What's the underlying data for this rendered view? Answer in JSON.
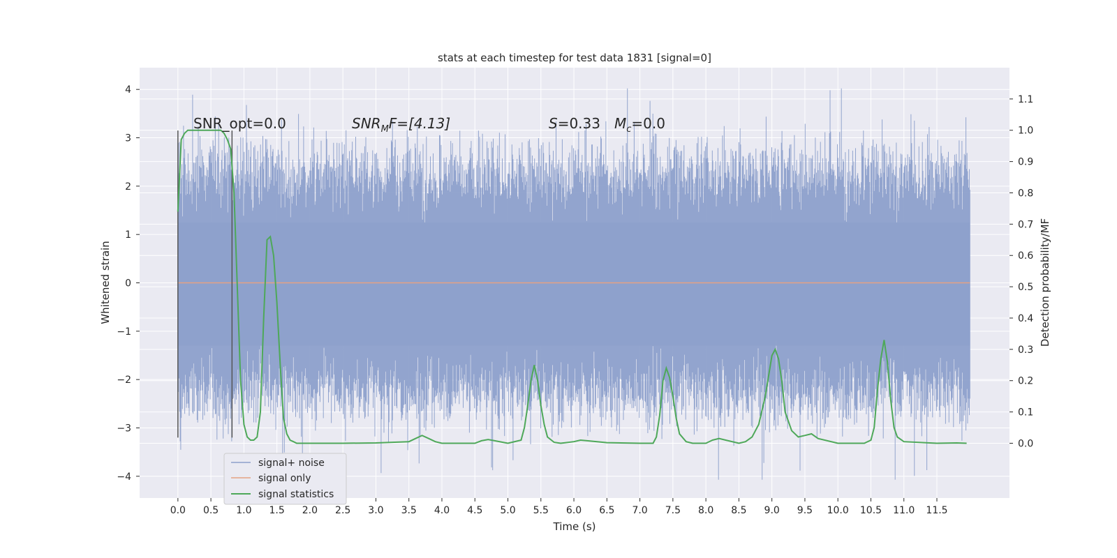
{
  "chart_data": {
    "type": "line",
    "title": "stats at each timestep for test data 1831 [signal=0]",
    "xlabel": "Time (s)",
    "ylabel": "Whitened strain",
    "y2label": "Detection probability/MF",
    "xlim": [
      -0.58,
      12.6
    ],
    "ylim": [
      -4.45,
      4.45
    ],
    "y2lim": [
      -0.175,
      1.2
    ],
    "x_ticks": [
      "0.0",
      "0.5",
      "1.0",
      "1.5",
      "2.0",
      "2.5",
      "3.0",
      "3.5",
      "4.0",
      "4.5",
      "5.0",
      "5.5",
      "6.0",
      "6.5",
      "7.0",
      "7.5",
      "8.0",
      "8.5",
      "9.0",
      "9.5",
      "10.0",
      "10.5",
      "11.0",
      "11.5"
    ],
    "y_ticks": [
      "4",
      "3",
      "2",
      "1",
      "0",
      "−1",
      "−2",
      "−3",
      "−4"
    ],
    "y2_ticks": [
      "1.1",
      "1.0",
      "0.9",
      "0.8",
      "0.7",
      "0.6",
      "0.5",
      "0.4",
      "0.3",
      "0.2",
      "0.1",
      "0.0"
    ],
    "grid": true,
    "legend_position": "lower-left",
    "annotations": {
      "snr_opt": "SNR_opt=0.0",
      "snr_mf_main": "SNR",
      "snr_mf_sub": "M",
      "snr_mf_rest": "F=[4.13]",
      "s_label": "S",
      "s_value": "=0.33",
      "mc_main": "M",
      "mc_sub": "c",
      "mc_value": "=0.0"
    },
    "series": [
      {
        "name": "signal+ noise",
        "color": "#8da0cb",
        "description_kind": "whitened strain noise, dense, spanning roughly -4.1 to 4.0",
        "envelope": {
          "t_start": 0.0,
          "t_end": 12.0,
          "typical_upper": 2.3,
          "typical_lower": -2.3,
          "max": 4.02,
          "min": -4.07
        }
      },
      {
        "name": "signal only",
        "color": "#e5a183",
        "values_constant": 0.0
      },
      {
        "name": "signal statistics",
        "color": "#4ea859",
        "axis": "right",
        "x": [
          0.0,
          0.05,
          0.1,
          0.15,
          0.2,
          0.3,
          0.4,
          0.5,
          0.6,
          0.65,
          0.7,
          0.75,
          0.8,
          0.85,
          0.9,
          0.95,
          1.0,
          1.05,
          1.1,
          1.15,
          1.2,
          1.25,
          1.3,
          1.35,
          1.4,
          1.45,
          1.5,
          1.55,
          1.6,
          1.65,
          1.7,
          1.75,
          1.8,
          1.9,
          2.0,
          2.5,
          3.0,
          3.5,
          3.6,
          3.7,
          3.8,
          3.9,
          4.0,
          4.5,
          4.6,
          4.7,
          4.8,
          5.0,
          5.2,
          5.25,
          5.3,
          5.35,
          5.4,
          5.45,
          5.5,
          5.55,
          5.6,
          5.7,
          5.8,
          6.0,
          6.1,
          6.2,
          6.5,
          7.0,
          7.2,
          7.25,
          7.3,
          7.35,
          7.4,
          7.45,
          7.5,
          7.55,
          7.6,
          7.7,
          7.8,
          8.0,
          8.1,
          8.2,
          8.3,
          8.5,
          8.6,
          8.7,
          8.8,
          8.9,
          9.0,
          9.05,
          9.1,
          9.15,
          9.2,
          9.3,
          9.4,
          9.5,
          9.6,
          9.7,
          10.0,
          10.4,
          10.5,
          10.55,
          10.6,
          10.65,
          10.7,
          10.75,
          10.8,
          10.85,
          10.9,
          11.0,
          11.5,
          11.8,
          11.95
        ],
        "values": [
          0.74,
          0.97,
          0.99,
          1.0,
          1.0,
          1.0,
          1.0,
          1.0,
          1.0,
          1.0,
          0.99,
          0.97,
          0.94,
          0.8,
          0.5,
          0.2,
          0.06,
          0.02,
          0.01,
          0.01,
          0.02,
          0.1,
          0.4,
          0.65,
          0.66,
          0.6,
          0.45,
          0.25,
          0.08,
          0.03,
          0.01,
          0.005,
          0.0,
          0.0,
          0.0,
          0.0,
          0.001,
          0.005,
          0.015,
          0.025,
          0.015,
          0.005,
          0.0,
          0.0,
          0.008,
          0.012,
          0.008,
          0.0,
          0.01,
          0.05,
          0.12,
          0.2,
          0.25,
          0.2,
          0.12,
          0.06,
          0.02,
          0.003,
          0.0,
          0.005,
          0.01,
          0.008,
          0.002,
          0.0,
          0.0,
          0.02,
          0.09,
          0.2,
          0.24,
          0.21,
          0.15,
          0.08,
          0.03,
          0.005,
          0.0,
          0.0,
          0.01,
          0.015,
          0.01,
          0.0,
          0.005,
          0.02,
          0.06,
          0.15,
          0.28,
          0.3,
          0.27,
          0.2,
          0.1,
          0.04,
          0.02,
          0.025,
          0.03,
          0.015,
          0.0,
          0.0,
          0.01,
          0.05,
          0.17,
          0.27,
          0.33,
          0.26,
          0.14,
          0.05,
          0.02,
          0.005,
          0.0,
          0.001,
          0.0
        ]
      }
    ],
    "vertical_markers": [
      {
        "name": "window-start",
        "x": 0.0,
        "y_range": [
          -3.2,
          3.15
        ]
      },
      {
        "name": "window-end",
        "x": 0.82,
        "y_range": [
          -3.2,
          3.15
        ]
      }
    ]
  }
}
